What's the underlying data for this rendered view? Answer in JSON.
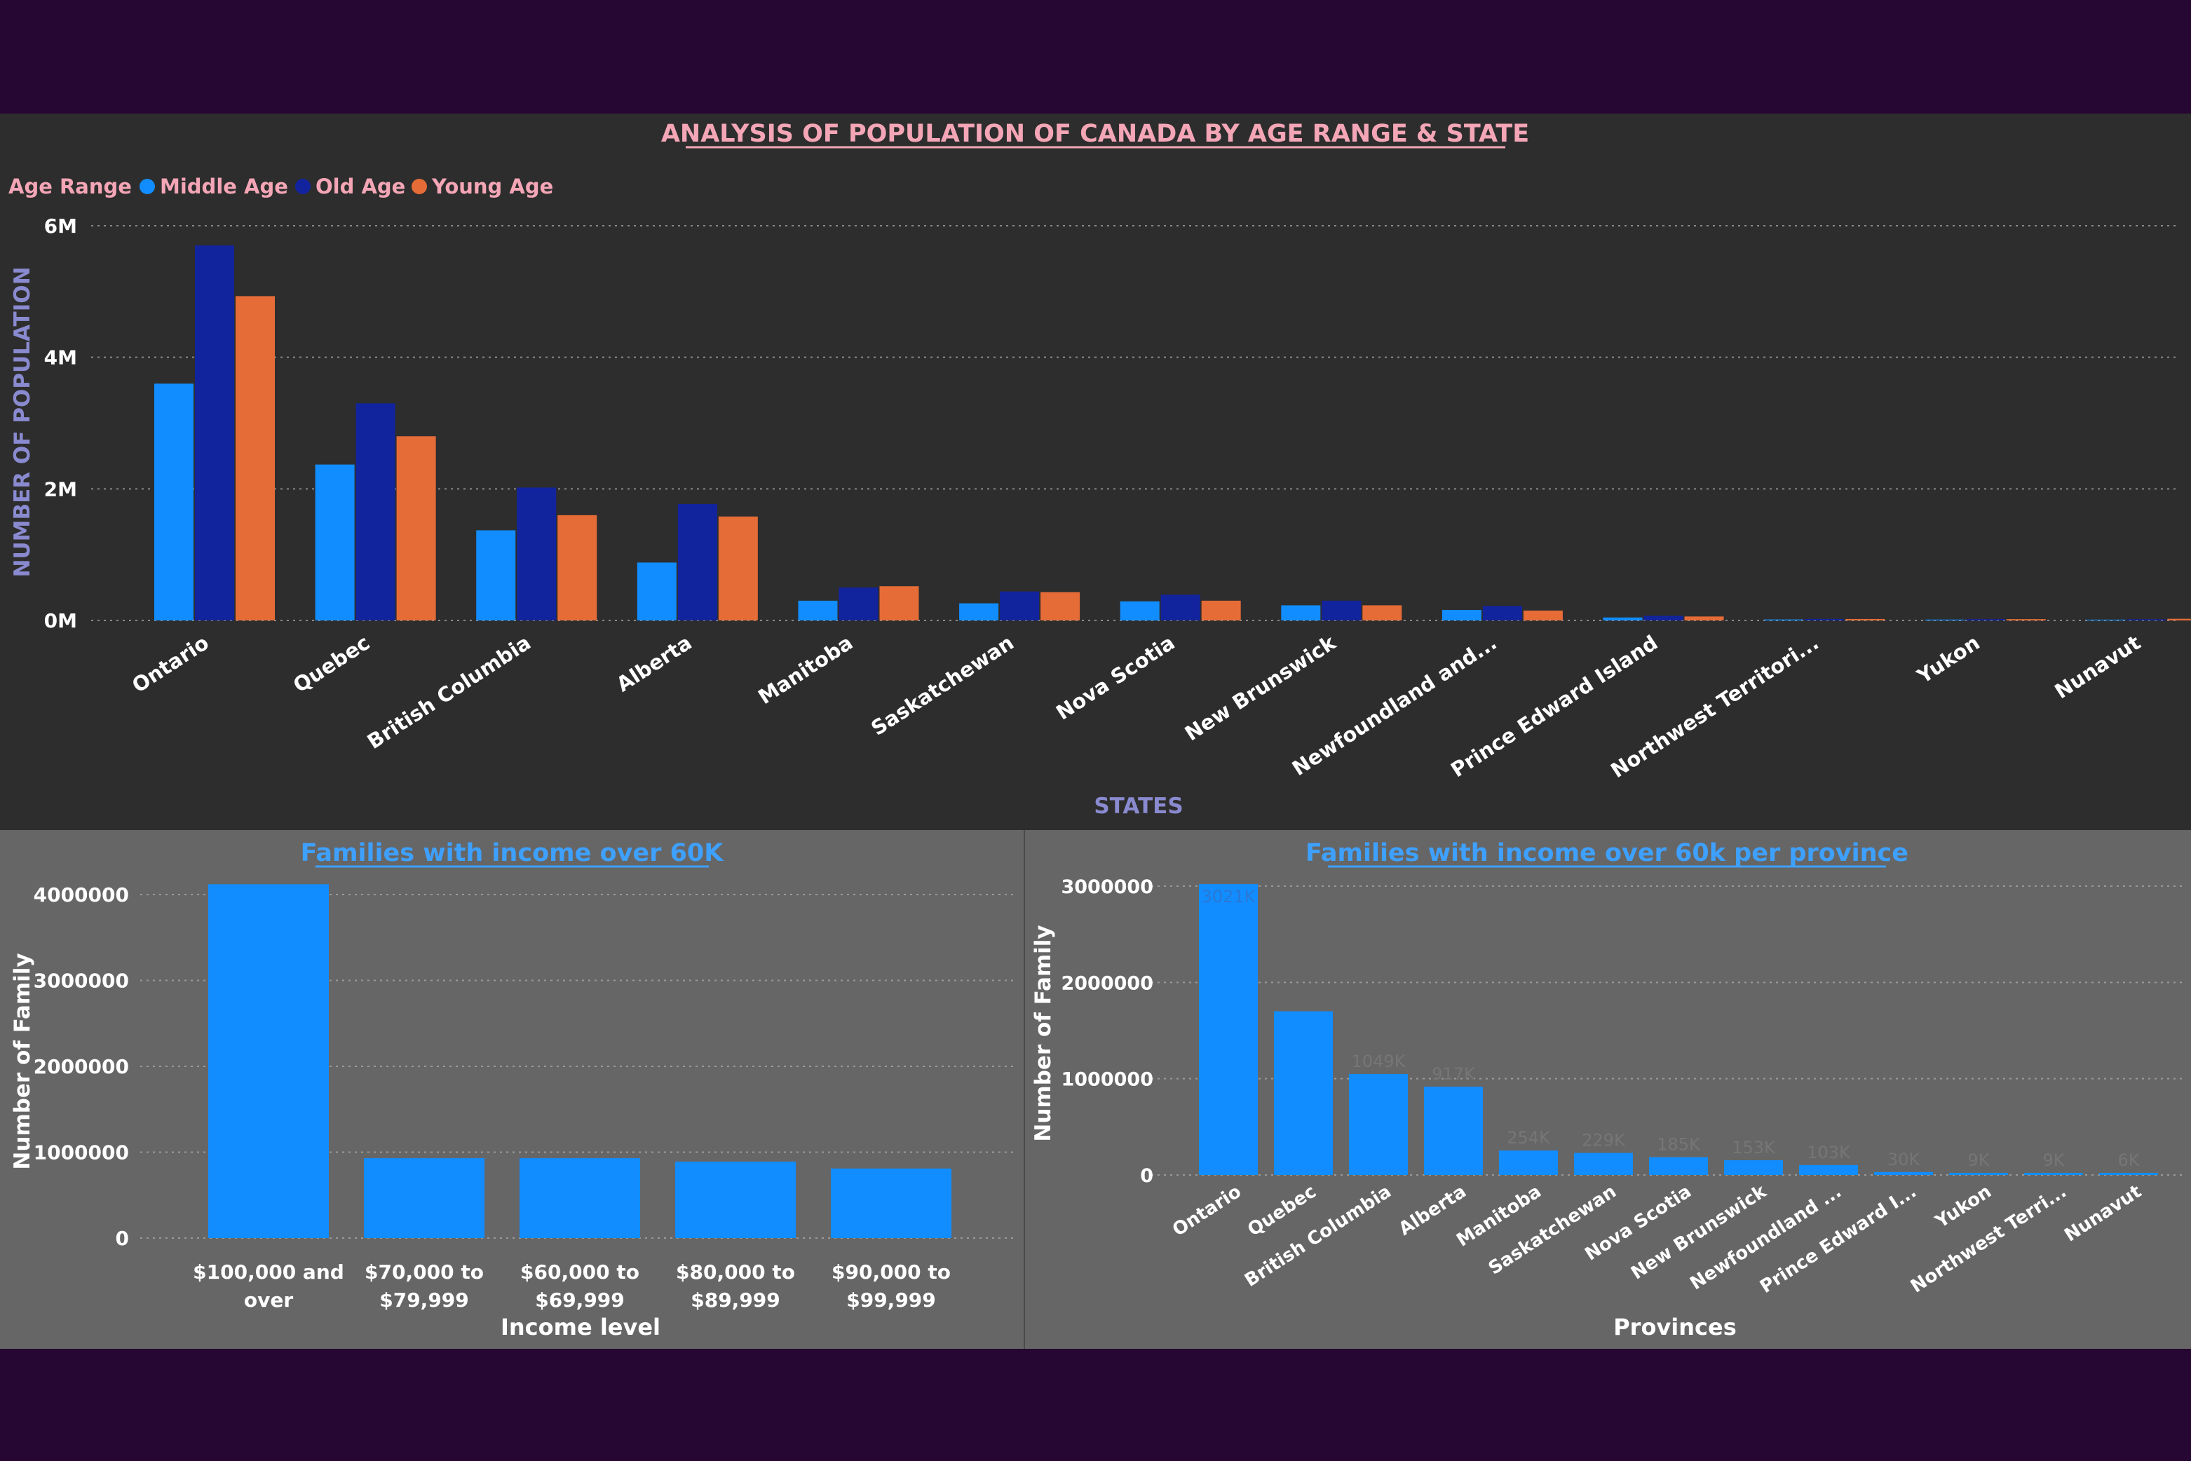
{
  "colors": {
    "background": "#260632",
    "top_panel": "#2d2d2d",
    "bottom_panels": "#666666",
    "middle_age": "#118dff",
    "old_age": "#12239e",
    "young_age": "#e66c37",
    "title_pink": "#f4a6b6",
    "axis_title_purple": "#8a8ad0",
    "link_blue": "#3ea0ff",
    "tick_white": "#ffffff",
    "gridline": "#8a8a8a"
  },
  "chart_data": [
    {
      "id": "population-chart",
      "type": "bar",
      "title": "ANALYSIS OF POPULATION OF CANADA BY AGE RANGE & STATE",
      "legend_title": "Age Range",
      "legend_position": "top-left",
      "xlabel": "STATES",
      "ylabel": "NUMBER OF POPULATION",
      "ylim": [
        0,
        6000000
      ],
      "yticks": [
        0,
        2000000,
        4000000,
        6000000
      ],
      "ytick_labels": [
        "0M",
        "2M",
        "4M",
        "6M"
      ],
      "grid": true,
      "categories": [
        "Ontario",
        "Quebec",
        "British Columbia",
        "Alberta",
        "Manitoba",
        "Saskatchewan",
        "Nova Scotia",
        "New Brunswick",
        "Newfoundland and...",
        "Prince Edward Island",
        "Northwest Territori...",
        "Yukon",
        "Nunavut"
      ],
      "series": [
        {
          "name": "Middle Age",
          "color": "#118dff",
          "values": [
            3600000,
            2370000,
            1370000,
            880000,
            300000,
            260000,
            290000,
            230000,
            160000,
            45000,
            15000,
            13000,
            12000
          ]
        },
        {
          "name": "Old Age",
          "color": "#12239e",
          "values": [
            5700000,
            3300000,
            2020000,
            1770000,
            500000,
            440000,
            390000,
            300000,
            220000,
            70000,
            22000,
            20000,
            18000
          ]
        },
        {
          "name": "Young Age",
          "color": "#e66c37",
          "values": [
            4930000,
            2800000,
            1600000,
            1580000,
            520000,
            430000,
            300000,
            230000,
            150000,
            60000,
            22000,
            20000,
            25000
          ]
        }
      ]
    },
    {
      "id": "income-chart",
      "type": "bar",
      "title": "Families with income over 60K",
      "xlabel": "Income level",
      "ylabel": "Number of Family",
      "ylim": [
        0,
        4200000
      ],
      "yticks": [
        0,
        1000000,
        2000000,
        3000000,
        4000000
      ],
      "ytick_labels": [
        "0",
        "1000000",
        "2000000",
        "3000000",
        "4000000"
      ],
      "grid": true,
      "categories": [
        "$100,000 and over",
        "$70,000 to $79,999",
        "$60,000 to $69,999",
        "$80,000 to $89,999",
        "$90,000 to $99,999"
      ],
      "category_lines": [
        [
          "$100,000 and",
          "over"
        ],
        [
          "$70,000 to",
          "$79,999"
        ],
        [
          "$60,000 to",
          "$69,999"
        ],
        [
          "$80,000 to",
          "$89,999"
        ],
        [
          "$90,000 to",
          "$99,999"
        ]
      ],
      "values": [
        4120000,
        930000,
        930000,
        890000,
        810000
      ]
    },
    {
      "id": "province-chart",
      "type": "bar",
      "title": "Families with income over 60k per province",
      "xlabel": "Provinces",
      "ylabel": "Number of Family",
      "ylim": [
        0,
        3000000
      ],
      "yticks": [
        0,
        1000000,
        2000000,
        3000000
      ],
      "ytick_labels": [
        "0",
        "1000000",
        "2000000",
        "3000000"
      ],
      "grid": true,
      "categories": [
        "Ontario",
        "Quebec",
        "British Columbia",
        "Alberta",
        "Manitoba",
        "Saskatchewan",
        "Nova Scotia",
        "New Brunswick",
        "Newfoundland ...",
        "Prince Edward I...",
        "Yukon",
        "Northwest Terri...",
        "Nunavut"
      ],
      "values": [
        3021000,
        1700000,
        1049000,
        917000,
        254000,
        229000,
        185000,
        153000,
        103000,
        30000,
        9000,
        9000,
        6000
      ],
      "data_labels": [
        "3021K",
        "",
        "1049K",
        "917K",
        "254K",
        "229K",
        "185K",
        "153K",
        "103K",
        "30K",
        "9K",
        "9K",
        "6K"
      ]
    }
  ]
}
